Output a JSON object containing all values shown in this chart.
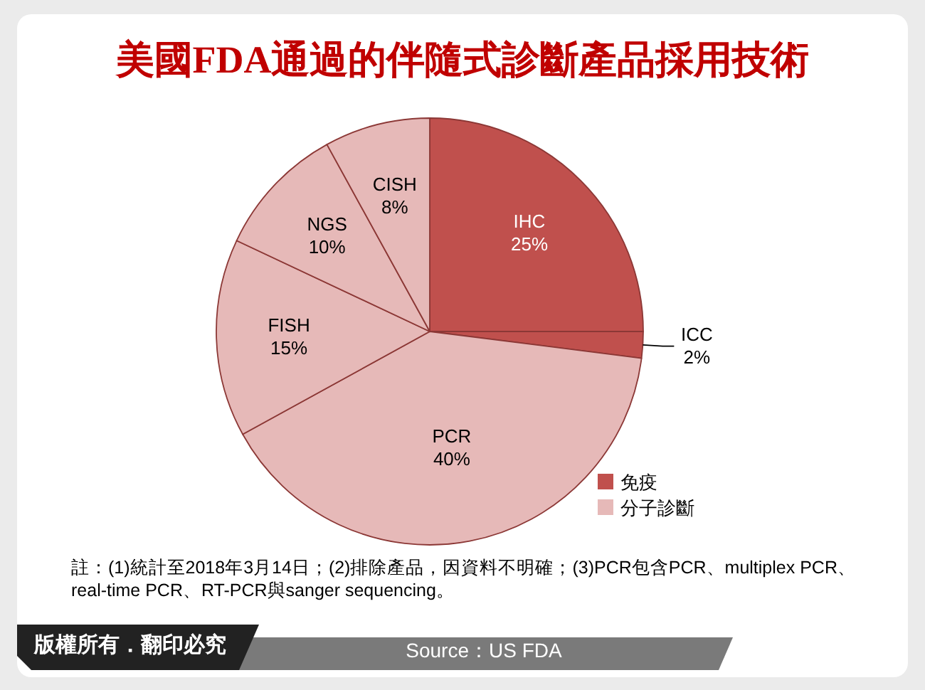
{
  "chart_data": {
    "type": "pie",
    "title": "美國FDA通過的伴隨式診斷產品採用技術",
    "categories": [
      "IHC",
      "ICC",
      "PCR",
      "FISH",
      "NGS",
      "CISH"
    ],
    "values": [
      25,
      2,
      40,
      15,
      10,
      8
    ],
    "colors": [
      "#c0504d",
      "#c0504d",
      "#e6b9b8",
      "#e6b9b8",
      "#e6b9b8",
      "#e6b9b8"
    ],
    "value_labels": [
      "25%",
      "2%",
      "40%",
      "15%",
      "10%",
      "8%"
    ],
    "annotations": [
      "免疫",
      "分子診斷",
      "註：(1)統計至2018年3月14日；(2)排除產品，因資料不明確；(3)PCR包含PCR、multiplex PCR、real-time PCR、RT-PCR與sanger sequencing。",
      "版權所有．翻印必究",
      "Source：US FDA"
    ]
  }
}
